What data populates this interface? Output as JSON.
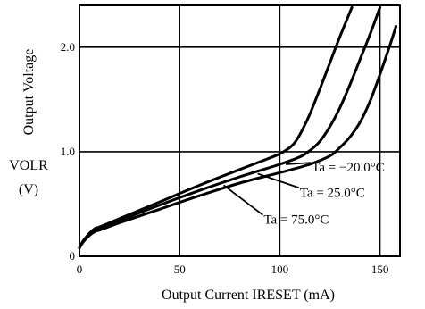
{
  "chart_data": {
    "type": "line",
    "title": "",
    "xlabel": "Output Current IRESET (mA)",
    "ylabel": "Output Voltage",
    "ylabel_symbol": "VOLR",
    "ylabel_unit": "(V)",
    "xlim": [
      0,
      160
    ],
    "ylim": [
      0,
      2.4
    ],
    "x_ticks": [
      0,
      50,
      100,
      150
    ],
    "x_tick_labels": [
      "0",
      "50",
      "100",
      "150"
    ],
    "y_ticks": [
      0,
      1.0,
      2.0
    ],
    "y_tick_labels": [
      "0",
      "1.0",
      "2.0"
    ],
    "grid": true,
    "legend": "none",
    "series": [
      {
        "name": "Ta = −20.0°C",
        "x": [
          0,
          2,
          5,
          8,
          10,
          20,
          40,
          60,
          80,
          95,
          100,
          105,
          108,
          111,
          115,
          120,
          125,
          130,
          136
        ],
        "y": [
          0.08,
          0.15,
          0.22,
          0.27,
          0.28,
          0.36,
          0.52,
          0.68,
          0.83,
          0.94,
          0.98,
          1.04,
          1.1,
          1.2,
          1.36,
          1.6,
          1.85,
          2.1,
          2.38
        ]
      },
      {
        "name": "Ta = 25.0°C",
        "x": [
          0,
          2,
          5,
          8,
          10,
          20,
          40,
          60,
          80,
          100,
          110,
          115,
          120,
          125,
          130,
          135,
          140,
          145,
          150
        ],
        "y": [
          0.08,
          0.15,
          0.21,
          0.25,
          0.26,
          0.34,
          0.49,
          0.63,
          0.76,
          0.88,
          0.95,
          1.01,
          1.1,
          1.24,
          1.42,
          1.64,
          1.88,
          2.12,
          2.38
        ]
      },
      {
        "name": "Ta = 75.0°C",
        "x": [
          0,
          2,
          5,
          8,
          10,
          20,
          40,
          60,
          80,
          100,
          115,
          125,
          130,
          135,
          140,
          145,
          150,
          155,
          158
        ],
        "y": [
          0.08,
          0.14,
          0.2,
          0.24,
          0.25,
          0.32,
          0.45,
          0.58,
          0.7,
          0.8,
          0.88,
          0.96,
          1.04,
          1.14,
          1.28,
          1.48,
          1.74,
          2.02,
          2.2
        ]
      }
    ],
    "annotations": [
      {
        "label": "Ta = −20.0°C",
        "x": 116,
        "y": 0.81,
        "points_to": [
          103,
          0.88
        ]
      },
      {
        "label": "Ta = 25.0°C",
        "x": 110,
        "y": 0.57,
        "points_to": [
          89,
          0.79
        ]
      },
      {
        "label": "Ta = 75.0°C",
        "x": 92,
        "y": 0.31,
        "points_to": [
          72,
          0.68
        ]
      }
    ]
  }
}
